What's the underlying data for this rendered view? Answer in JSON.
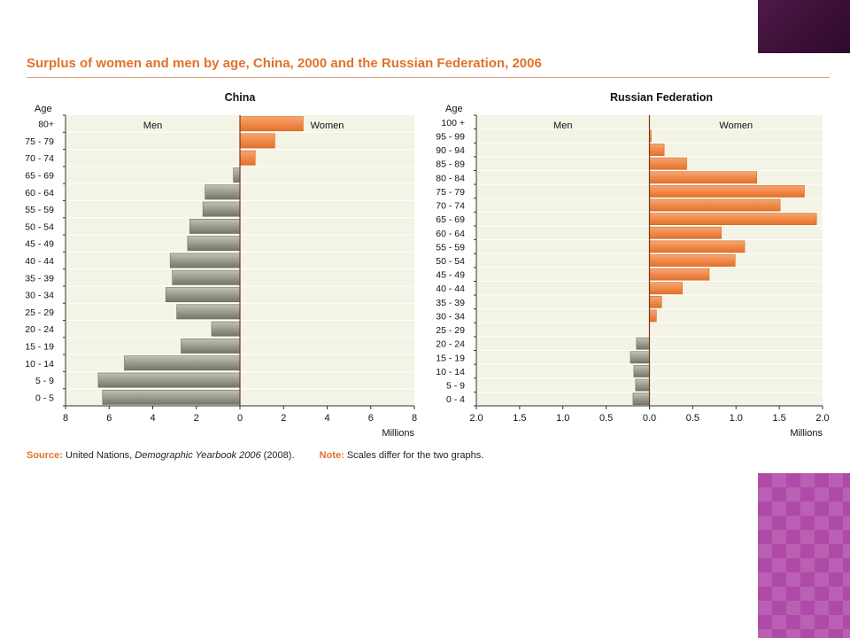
{
  "title": "Surplus of women and men by age, China, 2000 and the Russian Federation, 2006",
  "colors": {
    "accent": "#e2712b",
    "women_bar": "#f08a4b",
    "men_bar": "#9c9c8c",
    "plot_bg": "#f3f3e6"
  },
  "footer": {
    "source_label": "Source:",
    "source_pre": "United Nations, ",
    "source_italic": "Demographic Yearbook 2006",
    "source_post": " (2008).",
    "note_label": "Note:",
    "note_text": "Scales differ for the two graphs."
  },
  "chart_data": [
    {
      "type": "bar",
      "orientation": "horizontal",
      "title": "China",
      "ylabel": "Age",
      "xlabel": "Millions",
      "left_label": "Men",
      "right_label": "Women",
      "categories": [
        "0 - 5",
        "5 - 9",
        "10 - 14",
        "15 - 19",
        "20 - 24",
        "25 - 29",
        "30 - 34",
        "35 - 39",
        "40 - 44",
        "45 - 49",
        "50 - 54",
        "55 - 59",
        "60 - 64",
        "65 - 69",
        "70 - 74",
        "75 - 79",
        "80+"
      ],
      "values": [
        -6.3,
        -6.5,
        -5.3,
        -2.7,
        -1.3,
        -2.9,
        -3.4,
        -3.1,
        -3.2,
        -2.4,
        -2.3,
        -1.7,
        -1.6,
        -0.3,
        0.7,
        1.6,
        2.9
      ],
      "xlim": [
        -8,
        8
      ],
      "ticks": [
        -8,
        -6,
        -4,
        -2,
        0,
        2,
        4,
        6,
        8
      ],
      "tick_labels": [
        "8",
        "6",
        "4",
        "2",
        "0",
        "2",
        "4",
        "6",
        "8"
      ]
    },
    {
      "type": "bar",
      "orientation": "horizontal",
      "title": "Russian Federation",
      "ylabel": "Age",
      "xlabel": "Millions",
      "left_label": "Men",
      "right_label": "Women",
      "categories": [
        "0 - 4",
        "5 - 9",
        "10 - 14",
        "15 - 19",
        "20 - 24",
        "25 - 29",
        "30 - 34",
        "35 - 39",
        "40 - 44",
        "45 - 49",
        "50 - 54",
        "55 - 59",
        "60 - 64",
        "65 - 69",
        "70 - 74",
        "75 - 79",
        "80 - 84",
        "85 - 89",
        "90 - 94",
        "95 - 99",
        "100 +"
      ],
      "values": [
        -0.19,
        -0.16,
        -0.18,
        -0.22,
        -0.15,
        0.0,
        0.08,
        0.14,
        0.38,
        0.69,
        0.99,
        1.1,
        0.83,
        1.93,
        1.51,
        1.79,
        1.24,
        0.43,
        0.17,
        0.02,
        0.0
      ],
      "xlim": [
        -2,
        2
      ],
      "ticks": [
        -2,
        -1.5,
        -1,
        -0.5,
        0,
        0.5,
        1,
        1.5,
        2
      ],
      "tick_labels": [
        "2.0",
        "1.5",
        "1.0",
        "0.5",
        "0.0",
        "0.5",
        "1.0",
        "1.5",
        "2.0"
      ]
    }
  ]
}
